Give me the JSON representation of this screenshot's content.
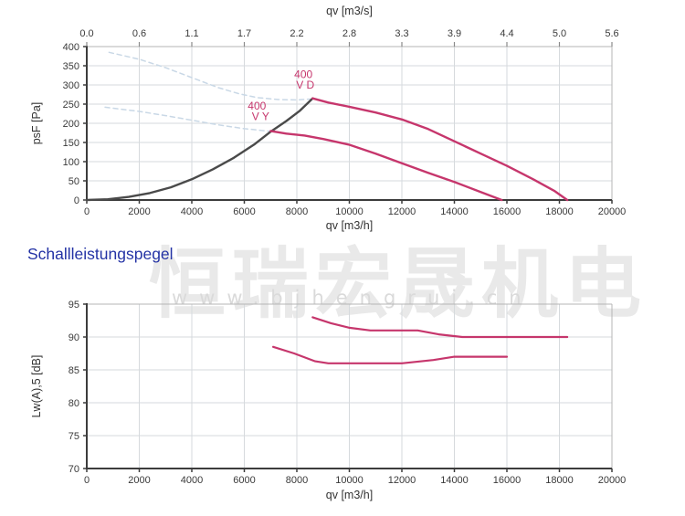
{
  "section_title": "Schallleistungspegel",
  "watermark": {
    "cn": "恒瑞宏晟机电",
    "url": "www.bjhengrui.cn"
  },
  "palette": {
    "pink": "#c6366c",
    "dark": "#4a4a4a",
    "dashed_blue": "#c9d8e6",
    "grid": "#d6dadd",
    "axis": "#3c3c3c",
    "axis_light": "#b5b5b5",
    "tick_text": "#3a3a3a",
    "heading_blue": "#2433a5"
  },
  "chart_data": [
    {
      "id": "performance",
      "type": "line",
      "title": "Fan performance curves",
      "top_axis_label": "qv [m3/s]",
      "xlabel": "qv [m3/h]",
      "ylabel": "psF [Pa]",
      "xlim": [
        0,
        20000
      ],
      "ylim": [
        0,
        400
      ],
      "grid": true,
      "legend_position": "none",
      "xticks": [
        0,
        2000,
        4000,
        6000,
        8000,
        10000,
        12000,
        14000,
        16000,
        18000,
        20000
      ],
      "xtick_labels": [
        "0",
        "2000",
        "4000",
        "6000",
        "8000",
        "10000",
        "12000",
        "14000",
        "16000",
        "18000",
        "20000"
      ],
      "top_axis_tick_labels": [
        "0.0",
        "0.6",
        "1.1",
        "1.7",
        "2.2",
        "2.8",
        "3.3",
        "3.9",
        "4.4",
        "5.0",
        "5.6"
      ],
      "yticks": [
        0,
        50,
        100,
        150,
        200,
        250,
        300,
        350,
        400
      ],
      "ytick_labels": [
        "0",
        "50",
        "100",
        "150",
        "200",
        "250",
        "300",
        "350",
        "400"
      ],
      "series": [
        {
          "name": "fan-curve-D-unstable-dashed",
          "color": "#c9d8e6",
          "width": 1.5,
          "dash": true,
          "points": [
            [
              850,
              385
            ],
            [
              2000,
              367
            ],
            [
              3000,
              345
            ],
            [
              4000,
              319
            ],
            [
              5000,
              293
            ],
            [
              5800,
              277
            ],
            [
              6500,
              267
            ],
            [
              7300,
              262
            ],
            [
              8000,
              261
            ],
            [
              8500,
              263
            ]
          ]
        },
        {
          "name": "fan-curve-Y-unstable-dashed",
          "color": "#c9d8e6",
          "width": 1.5,
          "dash": true,
          "points": [
            [
              700,
              242
            ],
            [
              2000,
              231
            ],
            [
              3000,
              220
            ],
            [
              4000,
              208
            ],
            [
              5000,
              196
            ],
            [
              6000,
              186
            ],
            [
              7000,
              179
            ],
            [
              7700,
              173
            ],
            [
              8300,
              168
            ]
          ]
        },
        {
          "name": "system-curve",
          "color": "#4a4a4a",
          "width": 2.4,
          "dash": false,
          "points": [
            [
              0,
              0
            ],
            [
              800,
              2
            ],
            [
              1600,
              8
            ],
            [
              2400,
              18
            ],
            [
              3200,
              33
            ],
            [
              4000,
              54
            ],
            [
              4800,
              80
            ],
            [
              5600,
              110
            ],
            [
              6400,
              146
            ],
            [
              7000,
              178
            ],
            [
              7600,
              206
            ],
            [
              8100,
              232
            ],
            [
              8600,
              265
            ]
          ]
        },
        {
          "name": "400-V-D",
          "color": "#c6366c",
          "width": 2.4,
          "dash": false,
          "points": [
            [
              8600,
              265
            ],
            [
              9200,
              254
            ],
            [
              10000,
              243
            ],
            [
              11000,
              228
            ],
            [
              12000,
              210
            ],
            [
              13000,
              185
            ],
            [
              14000,
              153
            ],
            [
              15000,
              121
            ],
            [
              16000,
              89
            ],
            [
              17000,
              54
            ],
            [
              17800,
              24
            ],
            [
              18300,
              0
            ]
          ]
        },
        {
          "name": "400-V-Y",
          "color": "#c6366c",
          "width": 2.4,
          "dash": false,
          "points": [
            [
              7000,
              180
            ],
            [
              7600,
              173
            ],
            [
              8300,
              168
            ],
            [
              9000,
              159
            ],
            [
              10000,
              144
            ],
            [
              11000,
              121
            ],
            [
              12000,
              96
            ],
            [
              13000,
              71
            ],
            [
              14000,
              47
            ],
            [
              15000,
              21
            ],
            [
              15800,
              0
            ]
          ]
        }
      ],
      "annotations": [
        {
          "text": "400",
          "x": 8250,
          "y": 318,
          "color": "#c6366c"
        },
        {
          "text": "V D",
          "x": 8320,
          "y": 290,
          "color": "#c6366c"
        },
        {
          "text": "400",
          "x": 6480,
          "y": 236,
          "color": "#c6366c"
        },
        {
          "text": "V Y",
          "x": 6620,
          "y": 208,
          "color": "#c6366c"
        }
      ]
    },
    {
      "id": "noise",
      "type": "line",
      "title": "Schallleistungspegel",
      "xlabel": "qv [m3/h]",
      "ylabel": "Lw(A),5 [dB]",
      "xlim": [
        0,
        20000
      ],
      "ylim": [
        70,
        95
      ],
      "grid": true,
      "legend_position": "none",
      "xticks": [
        0,
        2000,
        4000,
        6000,
        8000,
        10000,
        12000,
        14000,
        16000,
        18000,
        20000
      ],
      "xtick_labels": [
        "0",
        "2000",
        "4000",
        "6000",
        "8000",
        "10000",
        "12000",
        "14000",
        "16000",
        "18000",
        "20000"
      ],
      "yticks": [
        70,
        75,
        80,
        85,
        90,
        95
      ],
      "ytick_labels": [
        "70",
        "75",
        "80",
        "85",
        "90",
        "95"
      ],
      "series": [
        {
          "name": "noise-400-V-D",
          "color": "#c6366c",
          "width": 2.2,
          "dash": false,
          "points": [
            [
              8600,
              93
            ],
            [
              9300,
              92.1
            ],
            [
              10000,
              91.4
            ],
            [
              10800,
              91
            ],
            [
              12600,
              91
            ],
            [
              13400,
              90.4
            ],
            [
              14300,
              90
            ],
            [
              16000,
              90
            ],
            [
              18300,
              90
            ]
          ]
        },
        {
          "name": "noise-400-V-Y",
          "color": "#c6366c",
          "width": 2.2,
          "dash": false,
          "points": [
            [
              7100,
              88.5
            ],
            [
              7900,
              87.5
            ],
            [
              8700,
              86.3
            ],
            [
              9200,
              86
            ],
            [
              12000,
              86
            ],
            [
              13200,
              86.5
            ],
            [
              14000,
              87
            ],
            [
              16000,
              87
            ]
          ]
        }
      ],
      "annotations": []
    }
  ]
}
